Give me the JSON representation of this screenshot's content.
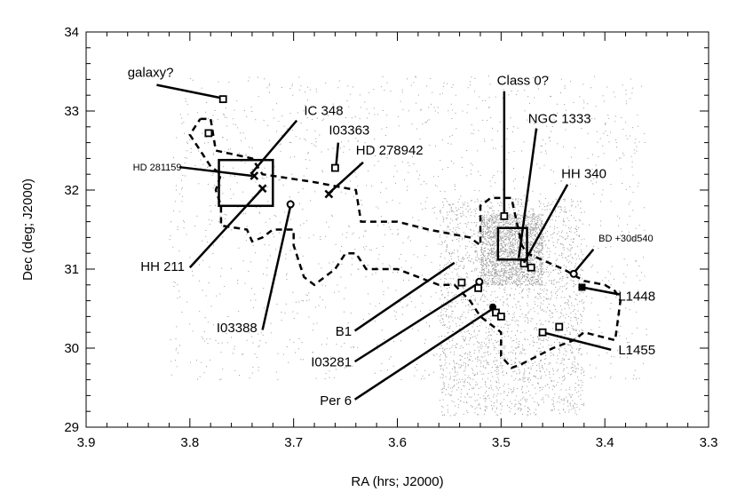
{
  "chart_data": {
    "type": "scatter",
    "xlabel": "RA (hrs; J2000)",
    "ylabel": "Dec (deg; J2000)",
    "xlim": [
      3.9,
      3.3
    ],
    "ylim": [
      29,
      34
    ],
    "x_ticks": [
      "3.9",
      "3.8",
      "3.7",
      "3.6",
      "3.5",
      "3.4",
      "3.3"
    ],
    "y_ticks": [
      "29",
      "30",
      "31",
      "32",
      "33",
      "34"
    ],
    "x_tick_values": [
      3.9,
      3.8,
      3.7,
      3.6,
      3.5,
      3.4,
      3.3
    ],
    "y_tick_values": [
      29,
      30,
      31,
      32,
      33,
      34
    ],
    "boxes": [
      {
        "x": [
          3.772,
          3.72
        ],
        "y": [
          31.8,
          32.38
        ]
      },
      {
        "x": [
          3.503,
          3.475
        ],
        "y": [
          31.12,
          31.52
        ]
      }
    ],
    "outline": [
      [
        3.79,
        32.9
      ],
      [
        3.78,
        32.9
      ],
      [
        3.775,
        32.5
      ],
      [
        3.74,
        32.4
      ],
      [
        3.73,
        32.2
      ],
      [
        3.68,
        32.1
      ],
      [
        3.64,
        32.0
      ],
      [
        3.635,
        31.6
      ],
      [
        3.6,
        31.6
      ],
      [
        3.57,
        31.5
      ],
      [
        3.53,
        31.4
      ],
      [
        3.52,
        31.3
      ],
      [
        3.52,
        31.8
      ],
      [
        3.51,
        31.9
      ],
      [
        3.49,
        31.9
      ],
      [
        3.48,
        31.3
      ],
      [
        3.475,
        31.2
      ],
      [
        3.44,
        31.0
      ],
      [
        3.42,
        30.85
      ],
      [
        3.4,
        30.8
      ],
      [
        3.39,
        30.72
      ],
      [
        3.385,
        30.6
      ],
      [
        3.39,
        30.1
      ],
      [
        3.42,
        30.2
      ],
      [
        3.43,
        30.1
      ],
      [
        3.45,
        30.0
      ],
      [
        3.48,
        29.8
      ],
      [
        3.49,
        29.75
      ],
      [
        3.5,
        29.9
      ],
      [
        3.5,
        30.2
      ],
      [
        3.52,
        30.4
      ],
      [
        3.53,
        30.6
      ],
      [
        3.545,
        30.8
      ],
      [
        3.56,
        30.8
      ],
      [
        3.6,
        31.0
      ],
      [
        3.63,
        31.0
      ],
      [
        3.64,
        31.2
      ],
      [
        3.65,
        31.2
      ],
      [
        3.66,
        31.0
      ],
      [
        3.68,
        30.8
      ],
      [
        3.69,
        30.9
      ],
      [
        3.7,
        31.3
      ],
      [
        3.7,
        31.5
      ],
      [
        3.72,
        31.5
      ],
      [
        3.73,
        31.4
      ],
      [
        3.74,
        31.35
      ],
      [
        3.745,
        31.5
      ],
      [
        3.77,
        31.55
      ],
      [
        3.77,
        31.8
      ],
      [
        3.775,
        32.0
      ],
      [
        3.77,
        32.2
      ],
      [
        3.78,
        32.3
      ],
      [
        3.79,
        32.5
      ],
      [
        3.8,
        32.7
      ],
      [
        3.79,
        32.9
      ]
    ],
    "annotations": [
      {
        "label": "galaxy?",
        "label_x": 3.86,
        "label_y": 33.43,
        "anchor": "start",
        "size": "large",
        "marker": "square",
        "mx": 3.768,
        "my": 33.15,
        "lx1": 3.832,
        "ly1": 33.33,
        "lx2": 3.768,
        "ly2": 33.16
      },
      {
        "label": "",
        "marker": "square",
        "mx": 3.782,
        "my": 32.72
      },
      {
        "label": "IC 348",
        "label_x": 3.69,
        "label_y": 32.95,
        "anchor": "start",
        "size": "large",
        "marker": "x",
        "mx": 3.738,
        "my": 32.18,
        "lx1": 3.697,
        "ly1": 32.88,
        "lx2": 3.74,
        "ly2": 32.22
      },
      {
        "label": "I03363",
        "label_x": 3.666,
        "label_y": 32.7,
        "anchor": "start",
        "size": "large",
        "marker": "square",
        "mx": 3.66,
        "my": 32.28,
        "lx1": 3.657,
        "ly1": 32.6,
        "lx2": 3.659,
        "ly2": 32.31
      },
      {
        "label": "HD 278942",
        "label_x": 3.64,
        "label_y": 32.45,
        "anchor": "start",
        "size": "large",
        "marker": "x",
        "mx": 3.666,
        "my": 31.95,
        "lx1": 3.633,
        "ly1": 32.35,
        "lx2": 3.666,
        "ly2": 31.96
      },
      {
        "label": "HD 281159",
        "label_x": 3.808,
        "label_y": 32.25,
        "anchor": "end",
        "size": "small",
        "marker": "none",
        "lx1": 3.81,
        "ly1": 32.29,
        "lx2": 3.74,
        "ly2": 32.18
      },
      {
        "label": "HH 211",
        "label_x": 3.805,
        "label_y": 30.98,
        "anchor": "end",
        "size": "large",
        "marker": "x",
        "mx": 3.73,
        "my": 32.02,
        "lx1": 3.8,
        "ly1": 31.02,
        "lx2": 3.73,
        "ly2": 32.02
      },
      {
        "label": "I03388",
        "label_x": 3.735,
        "label_y": 30.2,
        "anchor": "end",
        "size": "large",
        "marker": "circle",
        "mx": 3.703,
        "my": 31.82,
        "lx1": 3.73,
        "ly1": 30.23,
        "lx2": 3.703,
        "ly2": 31.8
      },
      {
        "label": "Class 0?",
        "label_x": 3.504,
        "label_y": 33.33,
        "anchor": "start",
        "size": "large",
        "marker": "square",
        "mx": 3.497,
        "my": 31.67,
        "lx1": 3.497,
        "ly1": 33.25,
        "lx2": 3.497,
        "ly2": 31.7
      },
      {
        "label": "NGC 1333",
        "label_x": 3.474,
        "label_y": 32.85,
        "anchor": "start",
        "size": "large",
        "marker": "square",
        "mx": 3.478,
        "my": 31.07,
        "lx1": 3.466,
        "ly1": 32.78,
        "lx2": 3.483,
        "ly2": 31.14
      },
      {
        "label": "",
        "marker": "square",
        "mx": 3.471,
        "my": 31.02
      },
      {
        "label": "HH 340",
        "label_x": 3.442,
        "label_y": 32.15,
        "anchor": "start",
        "size": "large",
        "marker": "none",
        "lx1": 3.436,
        "ly1": 32.07,
        "lx2": 3.478,
        "ly2": 31.08
      },
      {
        "label": "BD +30d540",
        "label_x": 3.406,
        "label_y": 31.35,
        "anchor": "start",
        "size": "small",
        "marker": "circle",
        "mx": 3.43,
        "my": 30.94,
        "lx1": 3.411,
        "ly1": 31.25,
        "lx2": 3.43,
        "ly2": 30.95
      },
      {
        "label": "L1448",
        "label_x": 3.387,
        "label_y": 30.6,
        "anchor": "start",
        "size": "large",
        "marker": "square-filled",
        "mx": 3.422,
        "my": 30.77,
        "lx1": 3.386,
        "ly1": 30.68,
        "lx2": 3.422,
        "ly2": 30.77
      },
      {
        "label": "L1455",
        "label_x": 3.387,
        "label_y": 29.92,
        "anchor": "start",
        "size": "large",
        "marker": "square",
        "mx": 3.46,
        "my": 30.2,
        "lx1": 3.394,
        "ly1": 29.98,
        "lx2": 3.46,
        "ly2": 30.2
      },
      {
        "label": "",
        "marker": "square",
        "mx": 3.444,
        "my": 30.27
      },
      {
        "label": "B1",
        "label_x": 3.644,
        "label_y": 30.16,
        "anchor": "end",
        "size": "large",
        "marker": "none",
        "lx1": 3.641,
        "ly1": 30.22,
        "lx2": 3.545,
        "ly2": 31.08
      },
      {
        "label": "I03281",
        "label_x": 3.644,
        "label_y": 29.77,
        "anchor": "end",
        "size": "large",
        "marker": "circle",
        "mx": 3.521,
        "my": 30.84,
        "lx1": 3.641,
        "ly1": 29.83,
        "lx2": 3.521,
        "ly2": 30.83
      },
      {
        "label": "",
        "marker": "square",
        "mx": 3.538,
        "my": 30.83
      },
      {
        "label": "",
        "marker": "square",
        "mx": 3.522,
        "my": 30.76
      },
      {
        "label": "Per 6",
        "label_x": 3.644,
        "label_y": 29.28,
        "anchor": "end",
        "size": "large",
        "marker": "circle-filled",
        "mx": 3.508,
        "my": 30.52,
        "lx1": 3.641,
        "ly1": 29.35,
        "lx2": 3.508,
        "ly2": 30.5
      },
      {
        "label": "",
        "marker": "square",
        "mx": 3.505,
        "my": 30.45
      },
      {
        "label": "",
        "marker": "square",
        "mx": 3.5,
        "my": 30.4
      }
    ],
    "background_regions": [
      {
        "x": [
          3.82,
          3.36
        ],
        "y": [
          29.6,
          33.45
        ],
        "weight": 1
      },
      {
        "x": [
          3.56,
          3.42
        ],
        "y": [
          29.15,
          31.9
        ],
        "weight": 1.4
      },
      {
        "x": [
          3.52,
          3.46
        ],
        "y": [
          30.8,
          31.7
        ],
        "weight": 1.2
      }
    ]
  }
}
